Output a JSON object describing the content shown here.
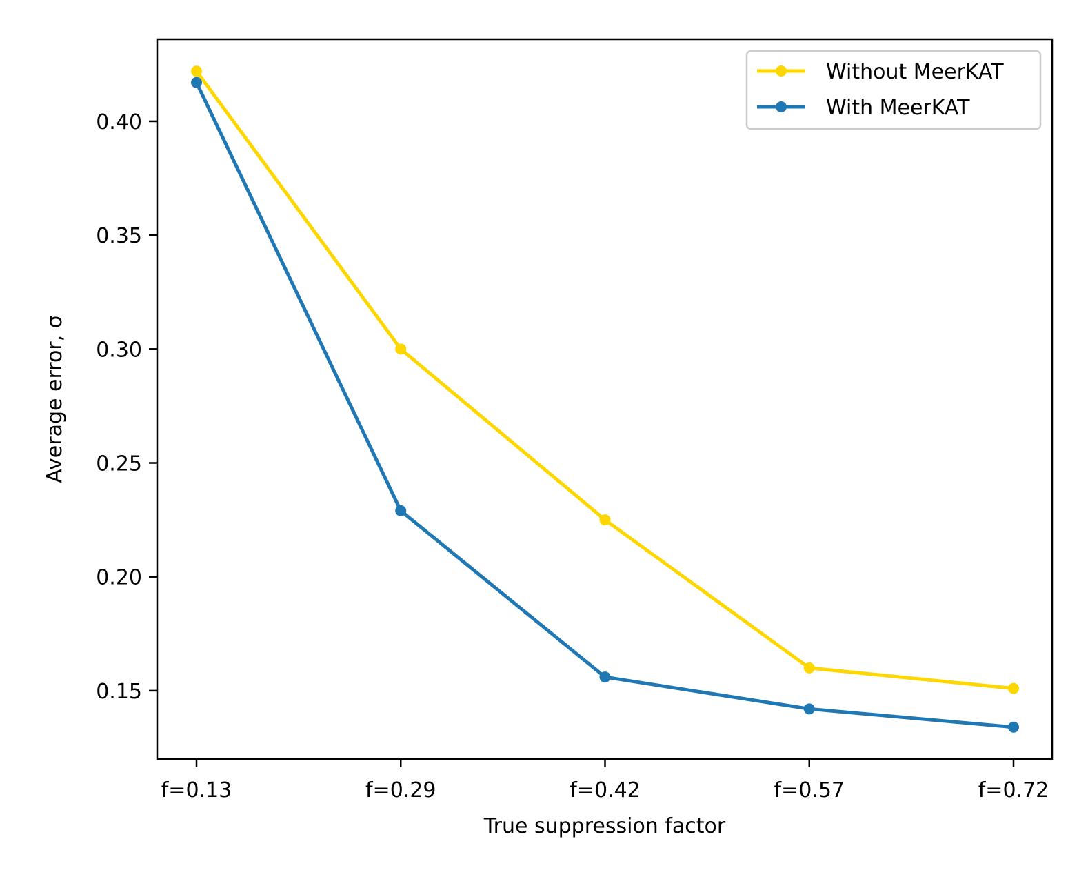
{
  "chart_data": {
    "type": "line",
    "title": "",
    "xlabel": "True suppression factor",
    "ylabel": "Average error, σ",
    "categories": [
      "f=0.13",
      "f=0.29",
      "f=0.42",
      "f=0.57",
      "f=0.72"
    ],
    "yticks": [
      "0.15",
      "0.20",
      "0.25",
      "0.30",
      "0.35",
      "0.40"
    ],
    "ylim": [
      0.12,
      0.436
    ],
    "grid": false,
    "legend_position": "top-right",
    "series": [
      {
        "name": "Without MeerKAT",
        "color": "#ffd700",
        "values": [
          0.422,
          0.3,
          0.225,
          0.16,
          0.151
        ]
      },
      {
        "name": "With MeerKAT",
        "color": "#1f77b4",
        "values": [
          0.417,
          0.229,
          0.156,
          0.142,
          0.134
        ]
      }
    ]
  }
}
